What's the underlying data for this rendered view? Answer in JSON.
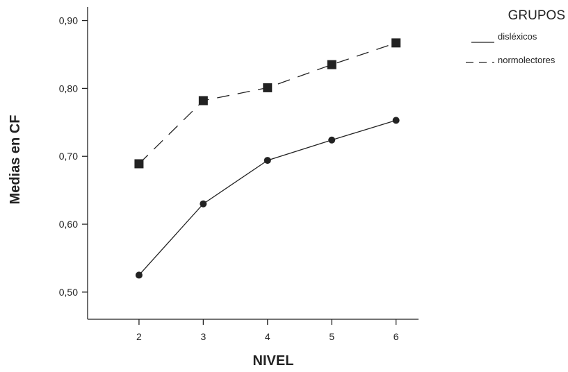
{
  "chart_data": {
    "type": "line",
    "xlabel": "NIVEL",
    "ylabel": "Medias en CF",
    "x": [
      2,
      3,
      4,
      5,
      6
    ],
    "x_tick_labels": [
      "2",
      "3",
      "4",
      "5",
      "6"
    ],
    "y_tick_labels": [
      "0,90",
      "0,80",
      "0,70",
      "0,60",
      "0,50"
    ],
    "y_ticks": [
      0.9,
      0.8,
      0.7,
      0.6,
      0.5
    ],
    "ylim": [
      0.46,
      0.92
    ],
    "xlim": [
      1.2,
      6.35
    ],
    "grid": false,
    "legend": {
      "title": "GRUPOS",
      "placement": "top-right"
    },
    "series": [
      {
        "name": "disléxicos",
        "values": [
          0.525,
          0.63,
          0.694,
          0.724,
          0.753
        ],
        "line_style": "solid",
        "marker": "circle",
        "color": "#222222"
      },
      {
        "name": "normolectores",
        "values": [
          0.689,
          0.782,
          0.801,
          0.835,
          0.867
        ],
        "line_style": "dashed",
        "marker": "square",
        "color": "#222222"
      }
    ]
  }
}
